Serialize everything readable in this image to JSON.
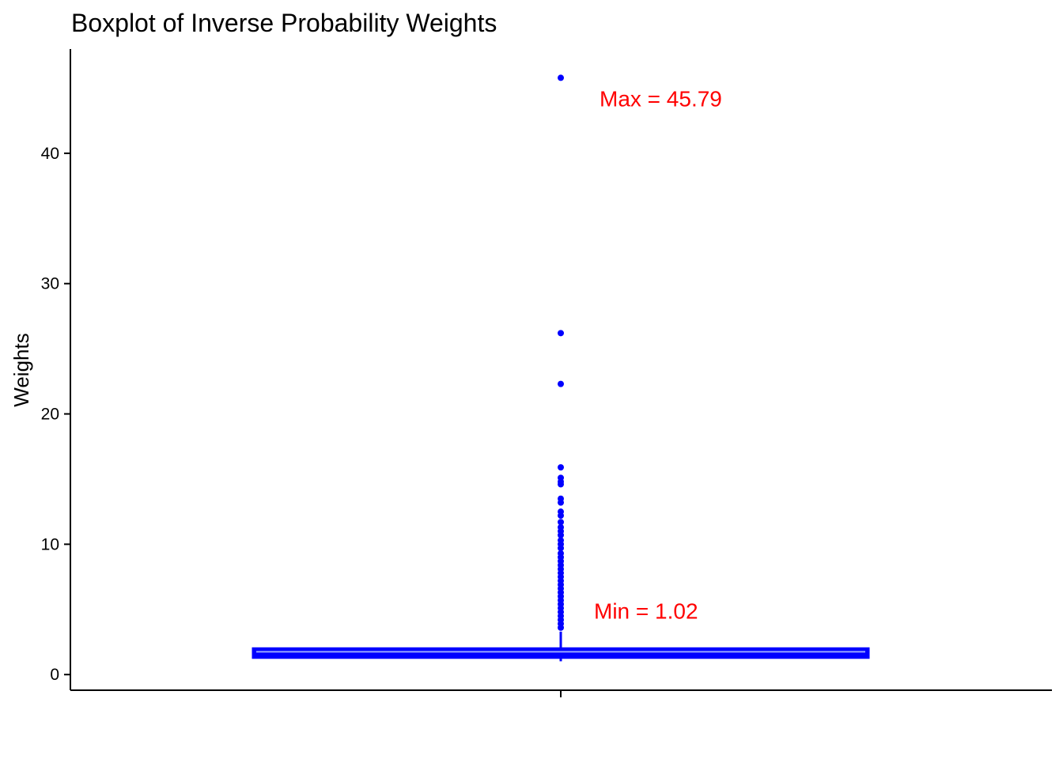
{
  "chart_data": {
    "type": "boxplot",
    "title": "Boxplot of Inverse Probability Weights",
    "xlabel": "",
    "ylabel": "Weights",
    "ylim": [
      -1.2,
      48.0
    ],
    "yticks": [
      0,
      10,
      20,
      30,
      40
    ],
    "grid": false,
    "legend": "none",
    "box": {
      "min": 1.02,
      "q1": 1.3,
      "median": 1.75,
      "q3": 2.0,
      "whisker_high": 3.3
    },
    "outliers": [
      45.79,
      26.2,
      22.3,
      15.9,
      15.1,
      14.8,
      14.6,
      13.5,
      13.2,
      12.5,
      12.2,
      11.7,
      11.3,
      11.0,
      10.7,
      10.3,
      10.0,
      9.7,
      9.3,
      9.0,
      8.7,
      8.4,
      8.1,
      7.8,
      7.5,
      7.2,
      6.9,
      6.6,
      6.3,
      6.0,
      5.7,
      5.4,
      5.1,
      4.8,
      4.5,
      4.2,
      3.9,
      3.6
    ],
    "annotations": [
      {
        "text": "Max = 45.79",
        "y": 44.2,
        "color": "#ff0000"
      },
      {
        "text": "Min = 1.02",
        "y": 4.9,
        "color": "#ff0000"
      }
    ],
    "colors": {
      "box": "#0000ff",
      "points": "#0000ff",
      "annotation": "#ff0000",
      "axis": "#000000"
    }
  }
}
